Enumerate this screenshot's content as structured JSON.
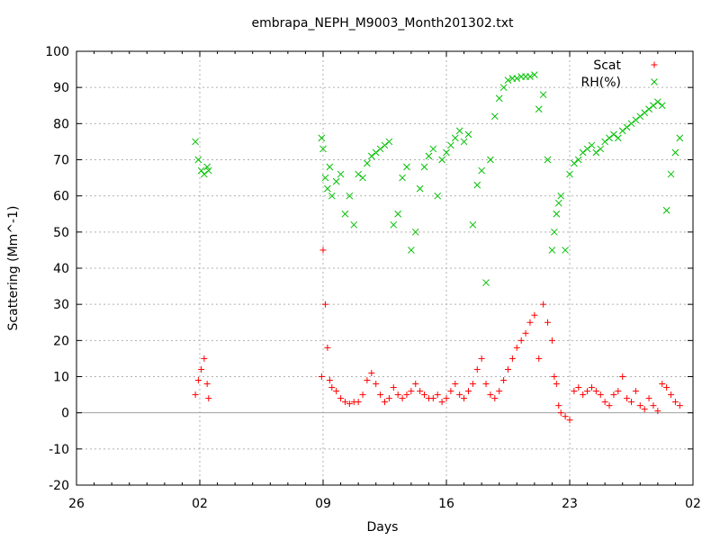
{
  "chart_data": {
    "type": "scatter",
    "title": "embrapa_NEPH_M9003_Month201302.txt",
    "xlabel": "Days",
    "ylabel": "Scattering (Mm^-1)",
    "x_unit": "date",
    "xlim": [
      "2013-01-26",
      "2013-03-02"
    ],
    "ylim": [
      -20,
      100
    ],
    "x_ticks": [
      {
        "label": "26",
        "date": "2013-01-26"
      },
      {
        "label": "02",
        "date": "2013-02-02"
      },
      {
        "label": "09",
        "date": "2013-02-09"
      },
      {
        "label": "16",
        "date": "2013-02-16"
      },
      {
        "label": "23",
        "date": "2013-02-23"
      },
      {
        "label": "02",
        "date": "2013-03-02"
      }
    ],
    "y_ticks": [
      -20,
      -10,
      0,
      10,
      20,
      30,
      40,
      50,
      60,
      70,
      80,
      90,
      100
    ],
    "grid": true,
    "zero_line": true,
    "legend_position": "top-right",
    "series": [
      {
        "name": "Scat",
        "marker": "+",
        "color": "#ff0000",
        "x": [
          "2013-02-01T18:00",
          "2013-02-01T22:00",
          "2013-02-02T02:00",
          "2013-02-02T06:00",
          "2013-02-02T10:00",
          "2013-02-02T12:00",
          "2013-02-08T22:00",
          "2013-02-09T00:00",
          "2013-02-09T03:00",
          "2013-02-09T06:00",
          "2013-02-09T09:00",
          "2013-02-09T12:00",
          "2013-02-09T18:00",
          "2013-02-10T00:00",
          "2013-02-10T06:00",
          "2013-02-10T12:00",
          "2013-02-10T18:00",
          "2013-02-11T00:00",
          "2013-02-11T06:00",
          "2013-02-11T12:00",
          "2013-02-11T18:00",
          "2013-02-12T00:00",
          "2013-02-12T06:00",
          "2013-02-12T12:00",
          "2013-02-12T18:00",
          "2013-02-13T00:00",
          "2013-02-13T06:00",
          "2013-02-13T12:00",
          "2013-02-13T18:00",
          "2013-02-14T00:00",
          "2013-02-14T06:00",
          "2013-02-14T12:00",
          "2013-02-14T18:00",
          "2013-02-15T00:00",
          "2013-02-15T06:00",
          "2013-02-15T12:00",
          "2013-02-15T18:00",
          "2013-02-16T00:00",
          "2013-02-16T06:00",
          "2013-02-16T12:00",
          "2013-02-16T18:00",
          "2013-02-17T00:00",
          "2013-02-17T06:00",
          "2013-02-17T12:00",
          "2013-02-17T18:00",
          "2013-02-18T00:00",
          "2013-02-18T06:00",
          "2013-02-18T12:00",
          "2013-02-18T18:00",
          "2013-02-19T00:00",
          "2013-02-19T06:00",
          "2013-02-19T12:00",
          "2013-02-19T18:00",
          "2013-02-20T00:00",
          "2013-02-20T06:00",
          "2013-02-20T12:00",
          "2013-02-20T18:00",
          "2013-02-21T00:00",
          "2013-02-21T06:00",
          "2013-02-21T12:00",
          "2013-02-21T18:00",
          "2013-02-22T00:00",
          "2013-02-22T03:00",
          "2013-02-22T06:00",
          "2013-02-22T09:00",
          "2013-02-22T12:00",
          "2013-02-22T18:00",
          "2013-02-23T00:00",
          "2013-02-23T06:00",
          "2013-02-23T12:00",
          "2013-02-23T18:00",
          "2013-02-24T00:00",
          "2013-02-24T06:00",
          "2013-02-24T12:00",
          "2013-02-24T18:00",
          "2013-02-25T00:00",
          "2013-02-25T06:00",
          "2013-02-25T12:00",
          "2013-02-25T18:00",
          "2013-02-26T00:00",
          "2013-02-26T06:00",
          "2013-02-26T12:00",
          "2013-02-26T18:00",
          "2013-02-27T00:00",
          "2013-02-27T06:00",
          "2013-02-27T12:00",
          "2013-02-27T18:00",
          "2013-02-28T00:00",
          "2013-02-28T06:00",
          "2013-02-28T12:00",
          "2013-02-28T18:00",
          "2013-03-01T00:00",
          "2013-03-01T06:00"
        ],
        "y": [
          5,
          9,
          12,
          15,
          8,
          4,
          10,
          45,
          30,
          18,
          9,
          7,
          6,
          4,
          3,
          2.5,
          3,
          3,
          5,
          9,
          11,
          8,
          5,
          3,
          4,
          7,
          5,
          4,
          5,
          6,
          8,
          6,
          5,
          4,
          4,
          5,
          3,
          4,
          6,
          8,
          5,
          4,
          6,
          8,
          12,
          15,
          8,
          5,
          4,
          6,
          9,
          12,
          15,
          18,
          20,
          22,
          25,
          27,
          15,
          30,
          25,
          20,
          10,
          8,
          2,
          0,
          -1,
          -2,
          6,
          7,
          5,
          6,
          7,
          6,
          5,
          3,
          2,
          5,
          6,
          10,
          4,
          3,
          6,
          2,
          1,
          4,
          2,
          0.5,
          8,
          7,
          5,
          3,
          2
        ]
      },
      {
        "name": "RH(%)",
        "marker": "x",
        "color": "#00c000",
        "x": [
          "2013-02-01T18:00",
          "2013-02-01T22:00",
          "2013-02-02T02:00",
          "2013-02-02T06:00",
          "2013-02-02T10:00",
          "2013-02-02T12:00",
          "2013-02-08T22:00",
          "2013-02-09T00:00",
          "2013-02-09T03:00",
          "2013-02-09T06:00",
          "2013-02-09T09:00",
          "2013-02-09T12:00",
          "2013-02-09T18:00",
          "2013-02-10T00:00",
          "2013-02-10T06:00",
          "2013-02-10T12:00",
          "2013-02-10T18:00",
          "2013-02-11T00:00",
          "2013-02-11T06:00",
          "2013-02-11T12:00",
          "2013-02-11T18:00",
          "2013-02-12T00:00",
          "2013-02-12T06:00",
          "2013-02-12T12:00",
          "2013-02-12T18:00",
          "2013-02-13T00:00",
          "2013-02-13T06:00",
          "2013-02-13T12:00",
          "2013-02-13T18:00",
          "2013-02-14T00:00",
          "2013-02-14T06:00",
          "2013-02-14T12:00",
          "2013-02-14T18:00",
          "2013-02-15T00:00",
          "2013-02-15T06:00",
          "2013-02-15T12:00",
          "2013-02-15T18:00",
          "2013-02-16T00:00",
          "2013-02-16T06:00",
          "2013-02-16T12:00",
          "2013-02-16T18:00",
          "2013-02-17T00:00",
          "2013-02-17T06:00",
          "2013-02-17T12:00",
          "2013-02-17T18:00",
          "2013-02-18T00:00",
          "2013-02-18T06:00",
          "2013-02-18T12:00",
          "2013-02-18T18:00",
          "2013-02-19T00:00",
          "2013-02-19T06:00",
          "2013-02-19T12:00",
          "2013-02-19T18:00",
          "2013-02-20T00:00",
          "2013-02-20T06:00",
          "2013-02-20T12:00",
          "2013-02-20T18:00",
          "2013-02-21T00:00",
          "2013-02-21T06:00",
          "2013-02-21T12:00",
          "2013-02-21T18:00",
          "2013-02-22T00:00",
          "2013-02-22T03:00",
          "2013-02-22T06:00",
          "2013-02-22T09:00",
          "2013-02-22T12:00",
          "2013-02-22T18:00",
          "2013-02-23T00:00",
          "2013-02-23T06:00",
          "2013-02-23T12:00",
          "2013-02-23T18:00",
          "2013-02-24T00:00",
          "2013-02-24T06:00",
          "2013-02-24T12:00",
          "2013-02-24T18:00",
          "2013-02-25T00:00",
          "2013-02-25T06:00",
          "2013-02-25T12:00",
          "2013-02-25T18:00",
          "2013-02-26T00:00",
          "2013-02-26T06:00",
          "2013-02-26T12:00",
          "2013-02-26T18:00",
          "2013-02-27T00:00",
          "2013-02-27T06:00",
          "2013-02-27T12:00",
          "2013-02-27T18:00",
          "2013-02-28T00:00",
          "2013-02-28T06:00",
          "2013-02-28T12:00",
          "2013-02-28T18:00",
          "2013-03-01T00:00",
          "2013-03-01T06:00"
        ],
        "y": [
          75,
          70,
          67,
          66,
          68,
          67,
          76,
          73,
          65,
          62,
          68,
          60,
          64,
          66,
          55,
          60,
          52,
          66,
          65,
          69,
          71,
          72,
          73,
          74,
          75,
          52,
          55,
          65,
          68,
          45,
          50,
          62,
          68,
          71,
          73,
          60,
          70,
          72,
          74,
          76,
          78,
          75,
          77,
          52,
          63,
          67,
          36,
          70,
          82,
          87,
          90,
          92,
          92.5,
          92.5,
          93,
          93,
          93,
          93.5,
          84,
          88,
          70,
          45,
          50,
          55,
          58,
          60,
          45,
          66,
          69,
          70,
          72,
          73,
          74,
          72,
          73,
          75,
          76,
          77,
          76,
          78,
          79,
          80,
          81,
          82,
          83,
          84,
          85,
          86,
          85,
          56,
          66,
          72,
          76
        ]
      }
    ]
  }
}
